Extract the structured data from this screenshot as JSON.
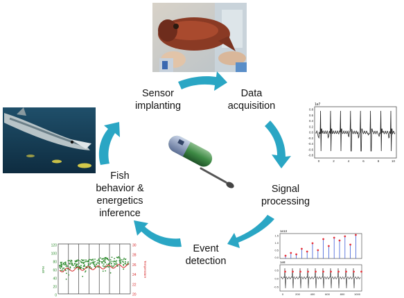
{
  "stages": {
    "sensor_implanting": {
      "line1": "Sensor",
      "line2": "implanting"
    },
    "data_acquisition": {
      "line1": "Data",
      "line2": "acquisition"
    },
    "signal_processing": {
      "line1": "Signal",
      "line2": "processing"
    },
    "event_detection": {
      "line1": "Event",
      "line2": "detection"
    },
    "fish_behavior": {
      "line1": "Fish",
      "line2": "behavior &",
      "line3": "energetics",
      "line4": "inference"
    }
  },
  "colors": {
    "arrow": "#2aa6c4",
    "signal_line": "#222222",
    "peak_marker": "#e8323a",
    "stem": "#3b5bd6",
    "green_dots": "#2e8b2e",
    "temp_axis": "#d62728"
  },
  "raw_signal_plot": {
    "exponent": "1e7",
    "x_ticks": [
      "0",
      "2",
      "4",
      "6",
      "8",
      "10"
    ],
    "y_ticks": [
      "0.8",
      "0.6",
      "0.4",
      "0.2",
      "0.0",
      "-0.2",
      "-0.4",
      "-0.6",
      "-0.8"
    ]
  },
  "processing_plot": {
    "top_exponent": "1e13",
    "top_y_ticks": [
      "1.5",
      "1.0",
      "0.5",
      "0.0"
    ],
    "bottom_exponent": "1e8",
    "bottom_y_ticks": [
      "0.5",
      "0.0",
      "-0.5"
    ],
    "x_ticks": [
      "0",
      "200",
      "400",
      "600",
      "800",
      "1000"
    ]
  },
  "behavior_plot": {
    "left_axis_label": "BPM",
    "left_ticks": [
      "120",
      "100",
      "80",
      "60",
      "40",
      "20",
      "0"
    ],
    "right_axis_label": "Temperature",
    "right_ticks": [
      "30",
      "28",
      "26",
      "24",
      "22",
      "20"
    ]
  }
}
